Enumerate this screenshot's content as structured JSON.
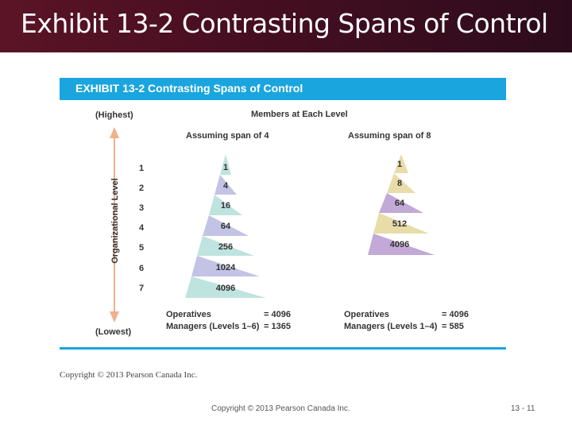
{
  "slide_title": "Exhibit 13-2 Contrasting Spans of Control",
  "exhibit_title": "EXHIBIT 13-2  Contrasting Spans of Control",
  "highest_label": "(Highest)",
  "lowest_label": "(Lowest)",
  "members_label": "Members at Each Level",
  "axis_label": "Organizational Level",
  "levels": [
    "1",
    "2",
    "3",
    "4",
    "5",
    "6",
    "7"
  ],
  "span4": {
    "heading": "Assuming span of 4",
    "values": [
      "1",
      "4",
      "16",
      "64",
      "256",
      "1024",
      "4096"
    ],
    "operatives_label": "Operatives",
    "operatives_value": "= 4096",
    "managers_label": "Managers (Levels 1–6)",
    "managers_value": "= 1365"
  },
  "span8": {
    "heading": "Assuming span of 8",
    "values": [
      "1",
      "8",
      "64",
      "512",
      "4096"
    ],
    "operatives_label": "Operatives",
    "operatives_value": "= 4096",
    "managers_label": "Managers (Levels 1–4)",
    "managers_value": "= 585"
  },
  "colors": {
    "header_bg": "#4a0f22",
    "exhibit_blue": "#1aa5de",
    "lavender": "#c3c3e6",
    "mint": "#bfe3df",
    "purple": "#c2a9d6",
    "tan": "#e8dca9",
    "arrow": "#f0b08a"
  },
  "image_copyright": "Copyright © 2013 Pearson Canada Inc.",
  "footer_copyright": "Copyright © 2013 Pearson Canada Inc.",
  "page_number": "13 - 11"
}
